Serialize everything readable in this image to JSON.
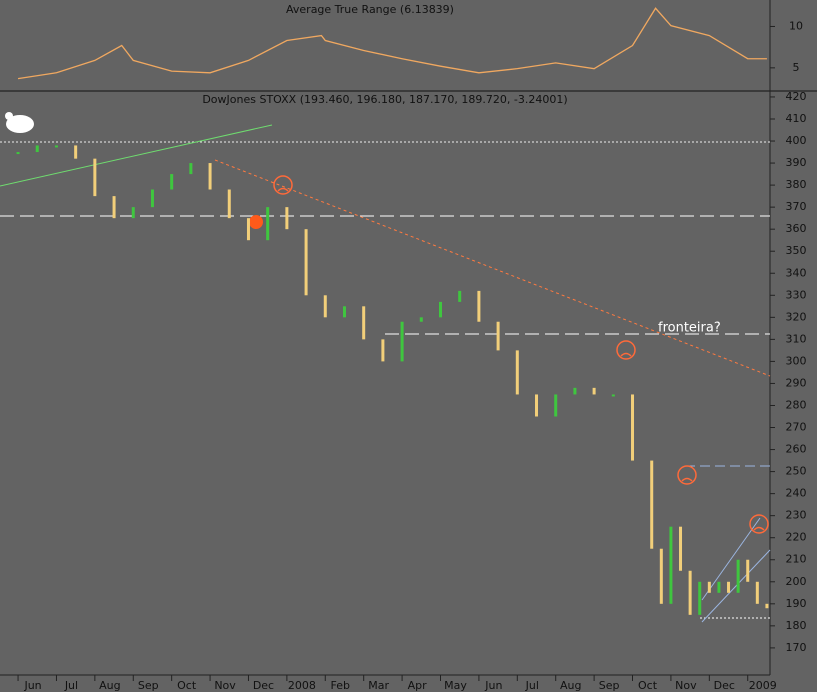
{
  "chart_data": [
    {
      "type": "line",
      "title": "Average True Range (6.13839)",
      "color": "#f0a860",
      "x": [
        0,
        1,
        2,
        2.7,
        3,
        4,
        5,
        6,
        7,
        7.9,
        8,
        9,
        10,
        11,
        12,
        13,
        14,
        15,
        16,
        16.6,
        17,
        18,
        19,
        19.5
      ],
      "values": [
        3.7,
        4.4,
        5.9,
        7.7,
        5.9,
        4.6,
        4.4,
        5.9,
        8.3,
        8.9,
        8.3,
        7.1,
        6.1,
        5.2,
        4.4,
        4.9,
        5.6,
        4.9,
        7.7,
        12.2,
        10.1,
        8.9,
        6.1,
        6.1
      ],
      "xlim": [
        -0.47,
        19.58
      ],
      "ylim": [
        2.2,
        13.2
      ],
      "yticks": [
        5,
        10
      ]
    },
    {
      "type": "stock",
      "title": "DowJones STOXX (193.460, 196.180, 187.170, 189.720, -3.24001)",
      "annotations": [
        "fronteira?"
      ],
      "up_color": "#3fc63f",
      "down_color": "#f2cf7a",
      "x": [
        0,
        0.5,
        1,
        1.5,
        2,
        2.5,
        3,
        3.5,
        4,
        4.5,
        5,
        5.5,
        6,
        6.5,
        7,
        7.5,
        8,
        8.5,
        9,
        9.5,
        10,
        10.5,
        11,
        11.5,
        12,
        12.5,
        13,
        13.5,
        14,
        14.5,
        15,
        15.5,
        16,
        16.5,
        16.75,
        17,
        17.25,
        17.5,
        17.75,
        18,
        18.25,
        18.5,
        18.75,
        19,
        19.25,
        19.5
      ],
      "values": [
        395,
        398,
        398,
        392,
        375,
        365,
        370,
        378,
        385,
        390,
        378,
        365,
        355,
        370,
        360,
        330,
        320,
        325,
        310,
        300,
        318,
        320,
        327,
        332,
        318,
        305,
        285,
        275,
        285,
        288,
        285,
        285,
        255,
        215,
        190,
        225,
        205,
        185,
        200,
        195,
        200,
        195,
        210,
        200,
        190,
        188
      ],
      "xlim": [
        -0.47,
        19.58
      ],
      "ylim": [
        157.7,
        422.7
      ],
      "yticks": [
        170,
        180,
        190,
        200,
        210,
        220,
        230,
        240,
        250,
        260,
        270,
        280,
        290,
        300,
        310,
        320,
        330,
        340,
        350,
        360,
        370,
        380,
        390,
        400,
        410,
        420
      ],
      "xticks": [
        {
          "value": 0,
          "label": "Jun"
        },
        {
          "value": 1,
          "label": "Jul"
        },
        {
          "value": 2,
          "label": "Aug"
        },
        {
          "value": 3,
          "label": "Sep"
        },
        {
          "value": 4,
          "label": "Oct"
        },
        {
          "value": 5,
          "label": "Nov"
        },
        {
          "value": 6,
          "label": "Dec"
        },
        {
          "value": 7,
          "label": "2008"
        },
        {
          "value": 8,
          "label": "Feb"
        },
        {
          "value": 9,
          "label": "Mar"
        },
        {
          "value": 10,
          "label": "Apr"
        },
        {
          "value": 11,
          "label": "May"
        },
        {
          "value": 12,
          "label": "Jun"
        },
        {
          "value": 13,
          "label": "Jul"
        },
        {
          "value": 14,
          "label": "Aug"
        },
        {
          "value": 15,
          "label": "Sep"
        },
        {
          "value": 16,
          "label": "Oct"
        },
        {
          "value": 17,
          "label": "Nov"
        },
        {
          "value": 18,
          "label": "Dec"
        },
        {
          "value": 19,
          "label": "2009"
        }
      ]
    }
  ]
}
